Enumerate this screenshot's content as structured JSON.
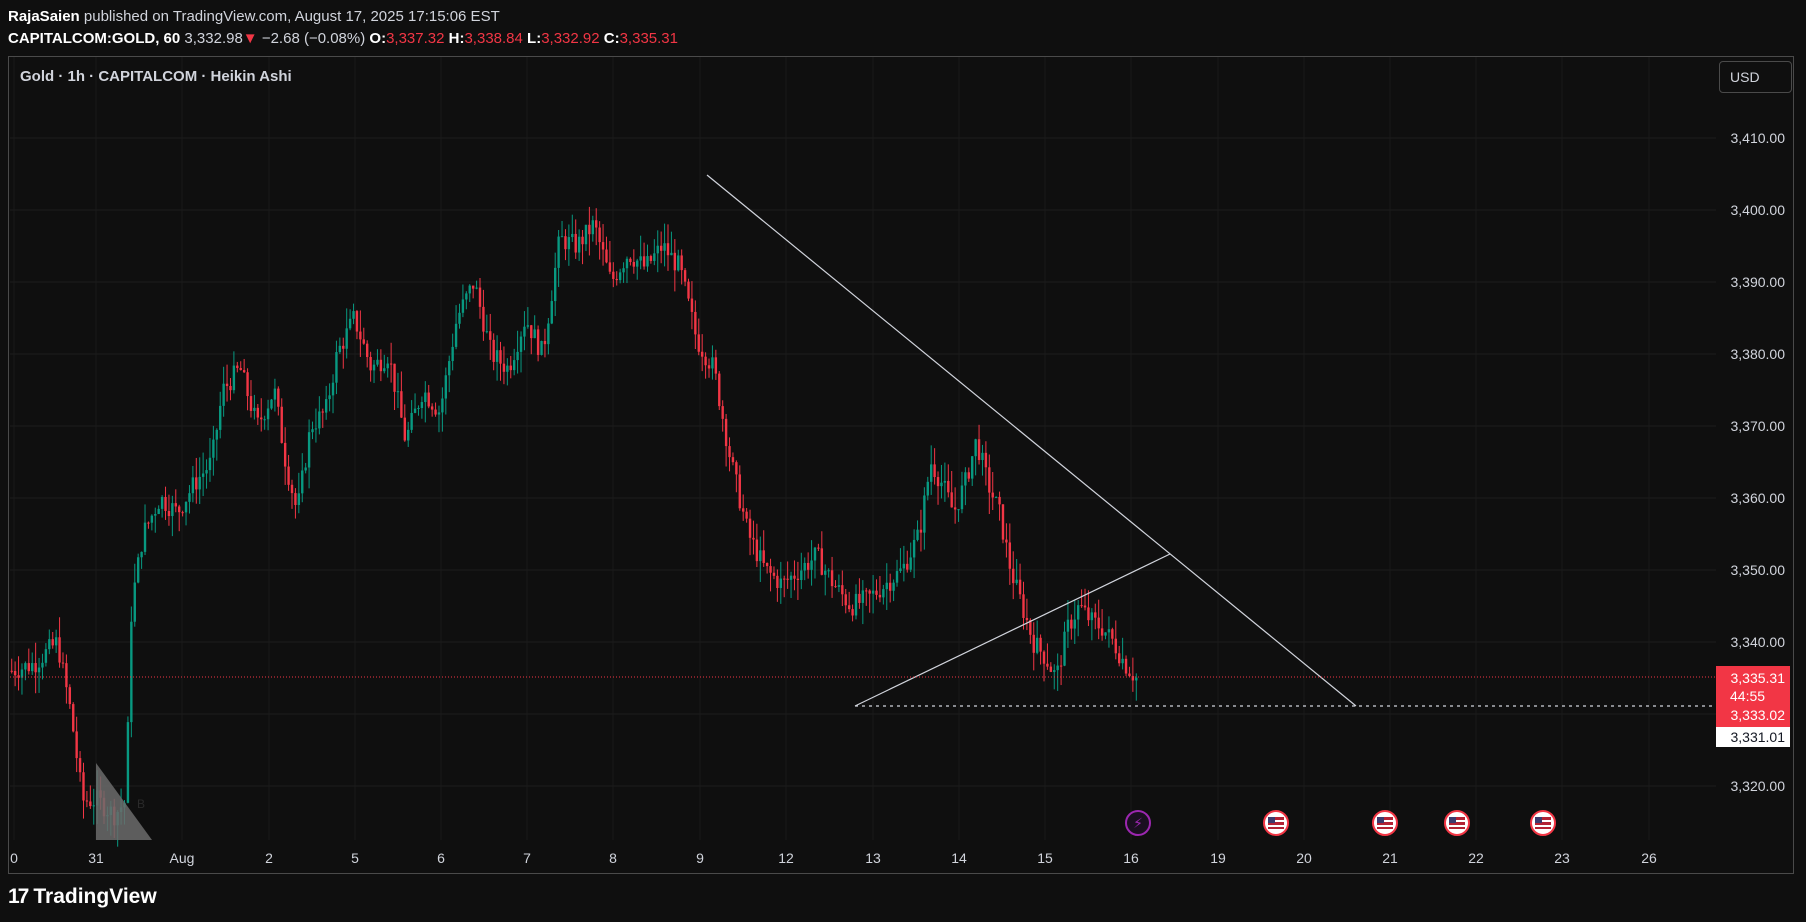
{
  "header": {
    "author": "RajaSaien",
    "published_text": " published on TradingView.com, August 17, 2025 17:15:06 EST",
    "symbol": "CAPITALCOM:GOLD, 60",
    "last": "3,332.98",
    "change": "−2.68 (−0.08%)",
    "o_label": "O:",
    "o": "3,337.32",
    "h_label": "H:",
    "h": "3,338.84",
    "l_label": "L:",
    "l": "3,332.92",
    "c_label": "C:",
    "c": "3,335.31"
  },
  "legend": {
    "title": "Gold · 1h · CAPITALCOM · Heikin Ashi"
  },
  "currency_button": "USD",
  "footer": {
    "brand": "TradingView",
    "logo_mark": "17"
  },
  "chart_data": {
    "type": "candlestick",
    "ylim": [
      3314,
      3418
    ],
    "y_ticks": [
      3320,
      3330,
      3340,
      3350,
      3360,
      3370,
      3380,
      3390,
      3400,
      3410
    ],
    "y_tick_labels": [
      "3,320.00",
      "3,340.00",
      "3,350.00",
      "3,360.00",
      "3,370.00",
      "3,380.00",
      "3,390.00",
      "3,400.00",
      "3,410.00"
    ],
    "x_tick_labels": [
      "0",
      "31",
      "Aug",
      "2",
      "5",
      "6",
      "7",
      "8",
      "9",
      "12",
      "13",
      "14",
      "15",
      "16",
      "19",
      "20",
      "21",
      "22",
      "23",
      "26"
    ],
    "price_labels": {
      "last_price": "3,335.31",
      "countdown": "44:55",
      "mid": "3,333.02",
      "low_line": "3,331.01"
    },
    "colors": {
      "up": "#089981",
      "down": "#f23645",
      "trendline": "#d1d4dc",
      "background": "#0f0f0f"
    },
    "path_key_points": [
      [
        0,
        3336
      ],
      [
        20,
        3337
      ],
      [
        40,
        3340
      ],
      [
        52,
        3330
      ],
      [
        62,
        3318
      ],
      [
        75,
        3318
      ],
      [
        90,
        3316
      ],
      [
        100,
        3318
      ],
      [
        105,
        3345
      ],
      [
        115,
        3355
      ],
      [
        130,
        3360
      ],
      [
        145,
        3358
      ],
      [
        160,
        3362
      ],
      [
        175,
        3365
      ],
      [
        185,
        3375
      ],
      [
        200,
        3378
      ],
      [
        215,
        3370
      ],
      [
        230,
        3375
      ],
      [
        240,
        3365
      ],
      [
        250,
        3358
      ],
      [
        262,
        3370
      ],
      [
        275,
        3372
      ],
      [
        285,
        3380
      ],
      [
        300,
        3385
      ],
      [
        315,
        3378
      ],
      [
        330,
        3380
      ],
      [
        345,
        3368
      ],
      [
        360,
        3375
      ],
      [
        375,
        3372
      ],
      [
        390,
        3385
      ],
      [
        405,
        3390
      ],
      [
        420,
        3380
      ],
      [
        435,
        3378
      ],
      [
        450,
        3385
      ],
      [
        465,
        3380
      ],
      [
        480,
        3396
      ],
      [
        495,
        3395
      ],
      [
        510,
        3398
      ],
      [
        525,
        3390
      ],
      [
        540,
        3394
      ],
      [
        555,
        3392
      ],
      [
        570,
        3395
      ],
      [
        585,
        3392
      ],
      [
        600,
        3382
      ],
      [
        615,
        3378
      ],
      [
        630,
        3365
      ],
      [
        645,
        3355
      ],
      [
        660,
        3350
      ],
      [
        675,
        3348
      ],
      [
        690,
        3350
      ],
      [
        705,
        3352
      ],
      [
        720,
        3348
      ],
      [
        735,
        3345
      ],
      [
        750,
        3346
      ],
      [
        765,
        3348
      ],
      [
        780,
        3350
      ],
      [
        795,
        3355
      ],
      [
        805,
        3365
      ],
      [
        815,
        3362
      ],
      [
        825,
        3358
      ],
      [
        835,
        3362
      ],
      [
        845,
        3368
      ],
      [
        855,
        3362
      ],
      [
        865,
        3358
      ],
      [
        875,
        3350
      ],
      [
        885,
        3345
      ],
      [
        895,
        3340
      ],
      [
        905,
        3338
      ],
      [
        915,
        3335
      ],
      [
        925,
        3342
      ],
      [
        935,
        3345
      ],
      [
        945,
        3343
      ],
      [
        955,
        3342
      ],
      [
        965,
        3340
      ],
      [
        975,
        3337
      ],
      [
        985,
        3335
      ]
    ],
    "event_icons": [
      "lightning-icon",
      "us-flag-icon",
      "us-flag-icon",
      "us-flag-icon",
      "us-flag-icon"
    ]
  }
}
